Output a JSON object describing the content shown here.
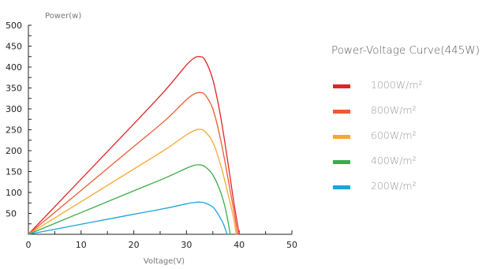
{
  "chart_data": {
    "type": "line",
    "title": "Power-Voltage Curve(445W)",
    "xlabel": "Voltage(V)",
    "ylabel": "Power(w)",
    "xlim": [
      0,
      50
    ],
    "ylim": [
      0,
      500
    ],
    "x_ticks": [
      0,
      10,
      20,
      30,
      40,
      50
    ],
    "y_ticks": [
      50,
      100,
      150,
      200,
      250,
      300,
      350,
      400,
      450,
      500
    ],
    "grid": false,
    "legend_position": "right",
    "series": [
      {
        "name": "1000W/m²",
        "color": "#e02424",
        "x": [
          0,
          10,
          20,
          26,
          30,
          31.5,
          32.5,
          33.5,
          35,
          36.5,
          38,
          39,
          40
        ],
        "y": [
          0,
          132,
          264,
          345,
          405,
          422,
          425,
          417,
          370,
          280,
          160,
          75,
          0
        ]
      },
      {
        "name": "800W/m²",
        "color": "#ee5a33",
        "x": [
          0,
          10,
          20,
          26,
          30,
          31.5,
          32.5,
          33.5,
          35,
          36.5,
          38,
          39,
          39.7
        ],
        "y": [
          0,
          105,
          210,
          273,
          322,
          336,
          339,
          334,
          300,
          225,
          125,
          55,
          0
        ]
      },
      {
        "name": "600W/m²",
        "color": "#f5a833",
        "x": [
          0,
          10,
          20,
          26,
          30,
          31.5,
          32.5,
          33.5,
          35,
          36.5,
          38,
          39,
          39.4
        ],
        "y": [
          0,
          78,
          156,
          203,
          238,
          248,
          251,
          246,
          220,
          165,
          90,
          35,
          0
        ]
      },
      {
        "name": "400W/m²",
        "color": "#3aac4a",
        "x": [
          0,
          10,
          20,
          26,
          30,
          31.5,
          32.5,
          33.5,
          35,
          36.5,
          37.5,
          38.3
        ],
        "y": [
          0,
          52,
          104,
          135,
          158,
          165,
          166,
          162,
          142,
          100,
          55,
          0
        ]
      },
      {
        "name": "200W/m²",
        "color": "#1ba3dc",
        "x": [
          0,
          10,
          20,
          26,
          30,
          31.5,
          32.5,
          33.5,
          35,
          36,
          37,
          37.7
        ],
        "y": [
          0,
          24,
          48,
          62,
          73,
          76,
          77,
          75,
          65,
          48,
          25,
          0
        ]
      }
    ]
  }
}
